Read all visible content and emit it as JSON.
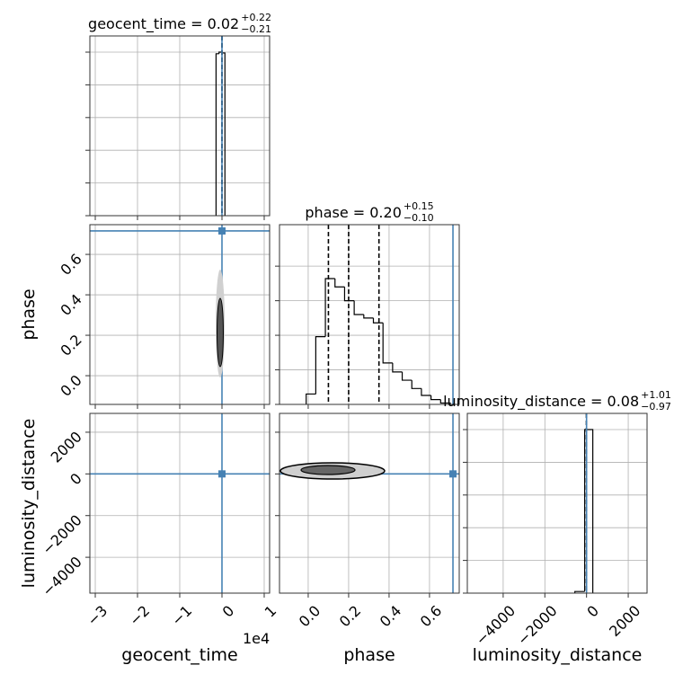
{
  "chart_data": {
    "type": "corner",
    "grid": true,
    "truth_color": "#4682b4",
    "hist_color": "#000000",
    "parameters": [
      {
        "name": "geocent_time",
        "title": "geocent_time = 0.02",
        "title_upper": "+0.22",
        "title_lower": "−0.21",
        "lim": [
          -31280,
          11280
        ],
        "ticks": [
          {
            "value": -30000,
            "label": "−3"
          },
          {
            "value": -20000,
            "label": "−2"
          },
          {
            "value": -10000,
            "label": "−1"
          },
          0,
          {
            "value": 10000,
            "label": "1"
          }
        ],
        "offset_label": "1e4",
        "truth": 0,
        "quantiles": [
          -0.19,
          0.02,
          0.24
        ],
        "bins": [
          -1400,
          -700,
          0,
          700
        ],
        "counts": [
          990,
          1000,
          995
        ],
        "hist_ylim": [
          0,
          1099
        ],
        "hist_yticks": [
          0,
          200,
          400,
          600,
          800,
          1000
        ]
      },
      {
        "name": "phase",
        "title": "phase = 0.20",
        "title_upper": "+0.15",
        "title_lower": "−0.10",
        "lim": [
          -0.142,
          0.747
        ],
        "ticks": [
          {
            "value": 0,
            "label": "0.0"
          },
          0.2,
          0.4,
          0.6
        ],
        "truth": 0.716,
        "quantiles": [
          0.1,
          0.2,
          0.35
        ],
        "bins": [
          -0.01,
          0.0375,
          0.085,
          0.1325,
          0.18,
          0.2275,
          0.275,
          0.3225,
          0.37,
          0.4175,
          0.465,
          0.5125,
          0.56,
          0.6075,
          0.655,
          0.7025
        ],
        "counts": [
          15,
          98,
          182,
          170,
          150,
          130,
          125,
          118,
          60,
          47,
          35,
          23,
          13,
          7,
          2
        ],
        "hist_ylim": [
          0,
          260
        ],
        "hist_yticks": [
          0,
          50,
          100,
          150,
          200
        ]
      },
      {
        "name": "luminosity_distance",
        "title": "luminosity_distance = 0.08",
        "title_upper": "+1.01",
        "title_lower": "−0.97",
        "lim": [
          -5720,
          2903
        ],
        "ticks": [
          {
            "value": -4000,
            "label": "−4000"
          },
          {
            "value": -2000,
            "label": "−2000"
          },
          0,
          2000
        ],
        "truth": 0,
        "quantiles": [
          -0.89,
          0.08,
          1.09
        ],
        "bins": [
          -560,
          -90,
          300
        ],
        "counts": [
          10,
          1000
        ],
        "hist_ylim": [
          0,
          1099
        ],
        "hist_yticks": [
          0,
          200,
          400,
          600,
          800,
          1000
        ]
      }
    ]
  }
}
